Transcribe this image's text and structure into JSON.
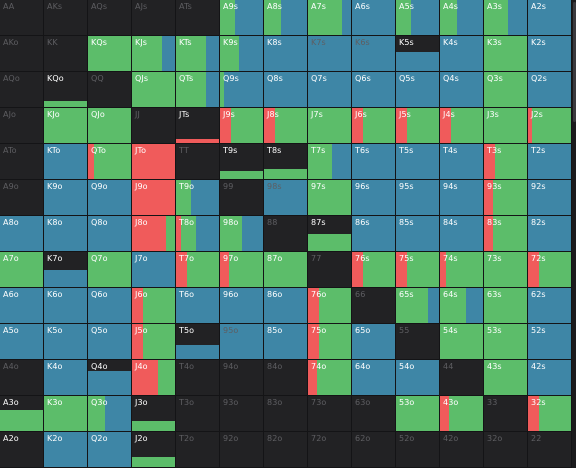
{
  "colors": {
    "green": "#5cbd6a",
    "blue": "#3e86a6",
    "red": "#f05b5b",
    "empty": "#222224"
  },
  "grid": {
    "rows": [
      [
        {
          "label": "AA",
          "dim": true
        },
        {
          "label": "AKs",
          "dim": true
        },
        {
          "label": "AQs",
          "dim": true
        },
        {
          "label": "AJs",
          "dim": true
        },
        {
          "label": "ATs",
          "dim": true
        },
        {
          "label": "A9s",
          "g": 0.35,
          "b": 0.65
        },
        {
          "label": "A8s",
          "g": 0.4,
          "b": 0.6
        },
        {
          "label": "A7s",
          "g": 0.8,
          "b": 0.2
        },
        {
          "label": "A6s",
          "b": 1
        },
        {
          "label": "A5s",
          "g": 0.35,
          "b": 0.65
        },
        {
          "label": "A4s",
          "g": 0.4,
          "b": 0.6
        },
        {
          "label": "A3s",
          "g": 0.55,
          "b": 0.45
        },
        {
          "label": "A2s",
          "b": 1
        }
      ],
      [
        {
          "label": "AKo",
          "dim": true
        },
        {
          "label": "KK",
          "dim": true
        },
        {
          "label": "KQs",
          "g": 1
        },
        {
          "label": "KJs",
          "g": 0.7,
          "b": 0.3
        },
        {
          "label": "KTs",
          "g": 0.7,
          "b": 0.3
        },
        {
          "label": "K9s",
          "g": 0.45,
          "b": 0.55
        },
        {
          "label": "K8s",
          "b": 1
        },
        {
          "label": "K7s",
          "b": 1,
          "dim": true
        },
        {
          "label": "K6s",
          "b": 1,
          "dim": true
        },
        {
          "label": "K5s",
          "bar": "b",
          "barH": 0.55
        },
        {
          "label": "K4s",
          "b": 1
        },
        {
          "label": "K3s",
          "g": 1
        },
        {
          "label": "K2s",
          "b": 1
        }
      ],
      [
        {
          "label": "AQo",
          "dim": true
        },
        {
          "label": "KQo",
          "bar": "g",
          "barH": 0.18
        },
        {
          "label": "QQ",
          "dim": true
        },
        {
          "label": "QJs",
          "g": 1
        },
        {
          "label": "QTs",
          "g": 0.7,
          "b": 0.3
        },
        {
          "label": "Q9s",
          "g": 0.1,
          "b": 0.9
        },
        {
          "label": "Q8s",
          "b": 1
        },
        {
          "label": "Q7s",
          "b": 1
        },
        {
          "label": "Q6s",
          "b": 1
        },
        {
          "label": "Q5s",
          "b": 1
        },
        {
          "label": "Q4s",
          "b": 1
        },
        {
          "label": "Q3s",
          "g": 1
        },
        {
          "label": "Q2s",
          "b": 1
        }
      ],
      [
        {
          "label": "AJo",
          "dim": true
        },
        {
          "label": "KJo",
          "g": 1
        },
        {
          "label": "QJo",
          "g": 1
        },
        {
          "label": "JJ",
          "dim": true
        },
        {
          "label": "JTs",
          "bar": "r",
          "barH": 0.12
        },
        {
          "label": "J9s",
          "r": 0.25,
          "g": 0.75
        },
        {
          "label": "J8s",
          "r": 0.25,
          "g": 0.75
        },
        {
          "label": "J7s",
          "g": 1
        },
        {
          "label": "J6s",
          "r": 0.25,
          "g": 0.75
        },
        {
          "label": "J5s",
          "r": 0.25,
          "g": 0.75
        },
        {
          "label": "J4s",
          "r": 0.25,
          "g": 0.75
        },
        {
          "label": "J3s",
          "g": 1
        },
        {
          "label": "J2s",
          "r": 0.1,
          "g": 0.9
        }
      ],
      [
        {
          "label": "ATo",
          "dim": true
        },
        {
          "label": "KTo",
          "b": 1
        },
        {
          "label": "QTo",
          "r": 0.15,
          "g": 0.85
        },
        {
          "label": "JTo",
          "r": 1
        },
        {
          "label": "TT",
          "dim": true
        },
        {
          "label": "T9s",
          "bar": "g",
          "barH": 0.22
        },
        {
          "label": "T8s",
          "bar": "g",
          "barH": 0.3
        },
        {
          "label": "T7s",
          "g": 0.55,
          "b": 0.45
        },
        {
          "label": "T6s",
          "b": 1
        },
        {
          "label": "T5s",
          "b": 1
        },
        {
          "label": "T4s",
          "b": 1
        },
        {
          "label": "T3s",
          "r": 0.25,
          "g": 0.75
        },
        {
          "label": "T2s",
          "b": 1
        }
      ],
      [
        {
          "label": "A9o",
          "dim": true
        },
        {
          "label": "K9o",
          "b": 1
        },
        {
          "label": "Q9o",
          "b": 1
        },
        {
          "label": "J9o",
          "r": 1
        },
        {
          "label": "T9o",
          "g": 0.35,
          "b": 0.65
        },
        {
          "label": "99",
          "dim": true
        },
        {
          "label": "98s",
          "b": 1,
          "dim": true
        },
        {
          "label": "97s",
          "g": 1
        },
        {
          "label": "96s",
          "b": 1
        },
        {
          "label": "95s",
          "b": 1
        },
        {
          "label": "94s",
          "b": 1
        },
        {
          "label": "93s",
          "r": 0.2,
          "g": 0.8
        },
        {
          "label": "92s",
          "b": 1
        }
      ],
      [
        {
          "label": "A8o",
          "b": 1
        },
        {
          "label": "K8o",
          "b": 1
        },
        {
          "label": "Q8o",
          "b": 1
        },
        {
          "label": "J8o",
          "r": 0.8,
          "g": 0.2
        },
        {
          "label": "T8o",
          "r": 0.12,
          "g": 0.35,
          "b": 0.53
        },
        {
          "label": "98o",
          "g": 0.5,
          "b": 0.5
        },
        {
          "label": "88",
          "dim": true
        },
        {
          "label": "87s",
          "bar": "g",
          "barH": 0.5
        },
        {
          "label": "86s",
          "b": 1
        },
        {
          "label": "85s",
          "b": 1
        },
        {
          "label": "84s",
          "b": 1
        },
        {
          "label": "83s",
          "r": 0.2,
          "g": 0.8
        },
        {
          "label": "82s",
          "b": 1
        }
      ],
      [
        {
          "label": "A7o",
          "g": 1
        },
        {
          "label": "K7o",
          "bar": "b",
          "barH": 0.5
        },
        {
          "label": "Q7o",
          "g": 1
        },
        {
          "label": "J7o",
          "b": 1
        },
        {
          "label": "T7o",
          "r": 0.25,
          "g": 0.75
        },
        {
          "label": "97o",
          "r": 0.2,
          "g": 0.8
        },
        {
          "label": "87o",
          "g": 1
        },
        {
          "label": "77",
          "dim": true
        },
        {
          "label": "76s",
          "r": 0.25,
          "g": 0.75
        },
        {
          "label": "75s",
          "r": 0.25,
          "g": 0.75
        },
        {
          "label": "74s",
          "r": 0.15,
          "g": 0.85
        },
        {
          "label": "73s",
          "g": 1
        },
        {
          "label": "72s",
          "r": 0.25,
          "g": 0.75
        }
      ],
      [
        {
          "label": "A6o",
          "b": 1
        },
        {
          "label": "K6o",
          "b": 1
        },
        {
          "label": "Q6o",
          "b": 1
        },
        {
          "label": "J6o",
          "r": 0.25,
          "g": 0.75
        },
        {
          "label": "T6o",
          "b": 1
        },
        {
          "label": "96o",
          "b": 1
        },
        {
          "label": "86o",
          "b": 1
        },
        {
          "label": "76o",
          "r": 0.25,
          "g": 0.75
        },
        {
          "label": "66",
          "dim": true
        },
        {
          "label": "65s",
          "g": 0.75,
          "b": 0.25
        },
        {
          "label": "64s",
          "g": 0.6,
          "b": 0.4
        },
        {
          "label": "63s",
          "g": 1
        },
        {
          "label": "62s",
          "b": 1
        }
      ],
      [
        {
          "label": "A5o",
          "b": 1
        },
        {
          "label": "K5o",
          "b": 1
        },
        {
          "label": "Q5o",
          "b": 1
        },
        {
          "label": "J5o",
          "r": 0.25,
          "g": 0.75
        },
        {
          "label": "T5o",
          "bar": "b",
          "barH": 0.4
        },
        {
          "label": "95o",
          "b": 1,
          "dim": true
        },
        {
          "label": "85o",
          "b": 1
        },
        {
          "label": "75o",
          "r": 0.25,
          "g": 0.75
        },
        {
          "label": "65o",
          "b": 1
        },
        {
          "label": "55",
          "dim": true
        },
        {
          "label": "54s",
          "g": 1
        },
        {
          "label": "53s",
          "g": 1
        },
        {
          "label": "52s",
          "b": 1
        }
      ],
      [
        {
          "label": "A4o",
          "dim": true
        },
        {
          "label": "K4o",
          "b": 1
        },
        {
          "label": "Q4o",
          "bar": "b",
          "barH": 0.7
        },
        {
          "label": "J4o",
          "r": 0.6,
          "g": 0.4
        },
        {
          "label": "T4o",
          "dim": true
        },
        {
          "label": "94o",
          "dim": true
        },
        {
          "label": "84o",
          "dim": true
        },
        {
          "label": "74o",
          "r": 0.2,
          "g": 0.8
        },
        {
          "label": "64o",
          "b": 1
        },
        {
          "label": "54o",
          "b": 1
        },
        {
          "label": "44",
          "dim": true
        },
        {
          "label": "43s",
          "g": 1
        },
        {
          "label": "42s",
          "b": 1
        }
      ],
      [
        {
          "label": "A3o",
          "bar": "g",
          "barH": 0.6
        },
        {
          "label": "K3o",
          "g": 1
        },
        {
          "label": "Q3o",
          "g": 0.4,
          "b": 0.6
        },
        {
          "label": "J3o",
          "bar": "g",
          "barH": 0.3
        },
        {
          "label": "T3o",
          "dim": true
        },
        {
          "label": "93o",
          "dim": true
        },
        {
          "label": "83o",
          "dim": true
        },
        {
          "label": "73o",
          "dim": true
        },
        {
          "label": "63o",
          "dim": true
        },
        {
          "label": "53o",
          "g": 1
        },
        {
          "label": "43o",
          "r": 0.2,
          "g": 0.8
        },
        {
          "label": "33",
          "dim": true
        },
        {
          "label": "32s",
          "r": 0.25,
          "g": 0.75
        }
      ],
      [
        {
          "label": "A2o",
          "dim": false
        },
        {
          "label": "K2o",
          "b": 1
        },
        {
          "label": "Q2o",
          "b": 1
        },
        {
          "label": "J2o",
          "bar": "g",
          "barH": 0.3
        },
        {
          "label": "T2o",
          "dim": true
        },
        {
          "label": "92o",
          "dim": true
        },
        {
          "label": "82o",
          "dim": true
        },
        {
          "label": "72o",
          "dim": true
        },
        {
          "label": "62o",
          "dim": true
        },
        {
          "label": "52o",
          "dim": true
        },
        {
          "label": "42o",
          "dim": true
        },
        {
          "label": "32o",
          "dim": true
        },
        {
          "label": "22",
          "dim": true
        }
      ]
    ]
  }
}
